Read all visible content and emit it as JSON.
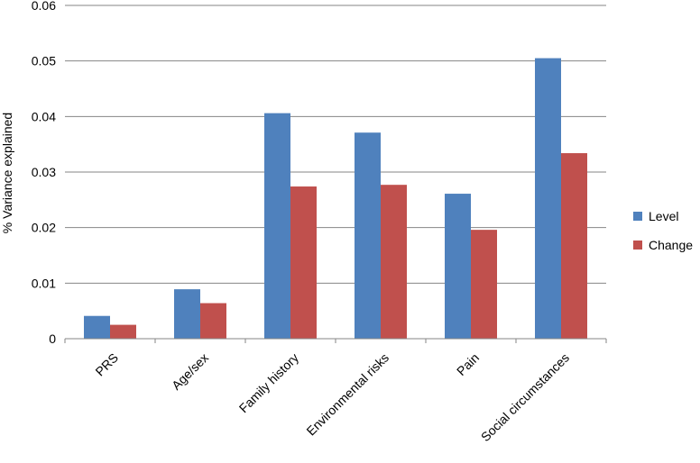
{
  "chart_data": {
    "type": "bar",
    "title": "",
    "xlabel": "",
    "ylabel": "% Variance explained",
    "ylim": [
      0,
      0.06
    ],
    "yticks": [
      "0",
      "0.01",
      "0.02",
      "0.03",
      "0.04",
      "0.05",
      "0.06"
    ],
    "categories": [
      "PRS",
      "Age/sex",
      "Family history",
      "Environmental risks",
      "Pain",
      "Social circumstances"
    ],
    "series": [
      {
        "name": "Level",
        "color": "#4F81BD",
        "values": [
          0.0041,
          0.0089,
          0.0406,
          0.0371,
          0.0261,
          0.0505
        ]
      },
      {
        "name": "Change",
        "color": "#C0504D",
        "values": [
          0.0025,
          0.0064,
          0.0274,
          0.0277,
          0.0196,
          0.0334
        ]
      }
    ],
    "grid": true,
    "legend": "right"
  }
}
